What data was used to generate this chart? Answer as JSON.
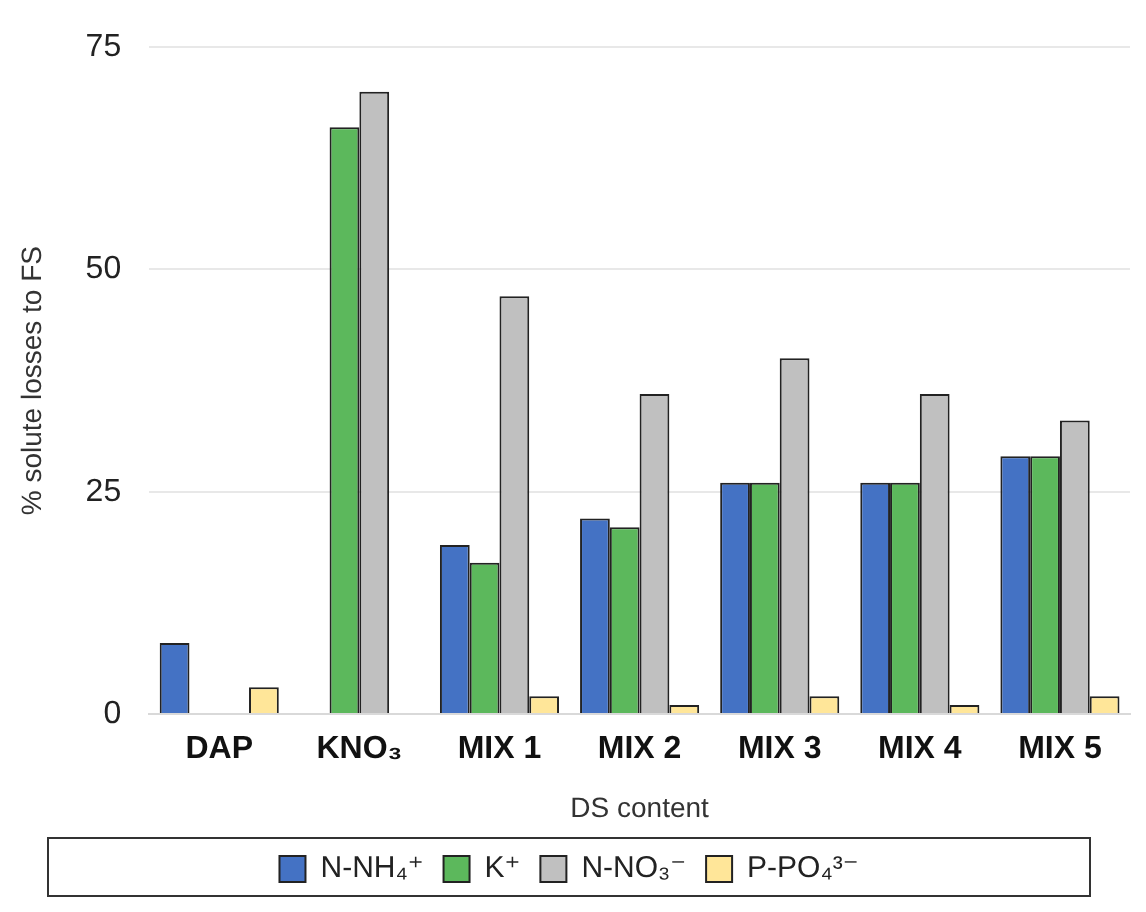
{
  "chart_data": {
    "type": "bar",
    "xlabel": "DS content",
    "ylabel": "% solute losses to FS",
    "categories": [
      "DAP",
      "KNO₃",
      "MIX 1",
      "MIX 2",
      "MIX 3",
      "MIX 4",
      "MIX 5"
    ],
    "series": [
      {
        "name": "N-NH₄⁺",
        "color": "#4472c4",
        "values": [
          8,
          null,
          19,
          22,
          26,
          26,
          29
        ]
      },
      {
        "name": "K⁺",
        "color": "#5cb85c",
        "values": [
          null,
          66,
          17,
          21,
          26,
          26,
          29
        ]
      },
      {
        "name": "N-NO₃⁻",
        "color": "#c0c0c0",
        "values": [
          null,
          70,
          47,
          36,
          40,
          36,
          33
        ]
      },
      {
        "name": "P-PO₄³⁻",
        "color": "#ffe699",
        "values": [
          3,
          null,
          2,
          1,
          2,
          1,
          2
        ]
      }
    ],
    "ylim": [
      0,
      75
    ],
    "yticks": [
      0,
      25,
      50,
      75
    ],
    "grid": "y",
    "legend": "bottom"
  }
}
